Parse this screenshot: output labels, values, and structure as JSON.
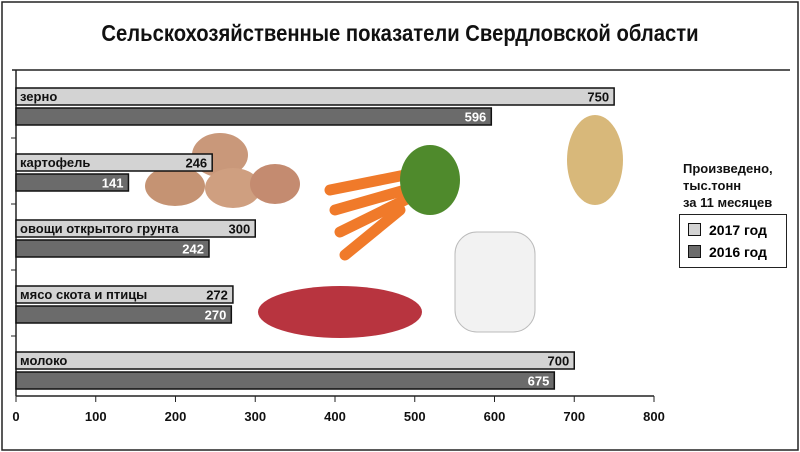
{
  "title": "Сельскохозяйственные показатели Свердловской области",
  "legend_title": [
    "Произведено,",
    "тыс.тонн",
    "за 11 месяцев"
  ],
  "chart_data": {
    "type": "bar",
    "orientation": "horizontal",
    "title": "Сельскохозяйственные показатели Свердловской области",
    "categories": [
      "зерно",
      "картофель",
      "овощи открытого грунта",
      "мясо скота и птицы",
      "молоко"
    ],
    "series": [
      {
        "name": "2017 год",
        "values": [
          750,
          246,
          300,
          272,
          700
        ],
        "color": "#d3d3d3"
      },
      {
        "name": "2016 год",
        "values": [
          596,
          141,
          242,
          270,
          675
        ],
        "color": "#6b6b6b"
      }
    ],
    "xlim": [
      0,
      800
    ],
    "xticks": [
      0,
      100,
      200,
      300,
      400,
      500,
      600,
      700,
      800
    ],
    "grid": false,
    "legend_placement": "right"
  }
}
